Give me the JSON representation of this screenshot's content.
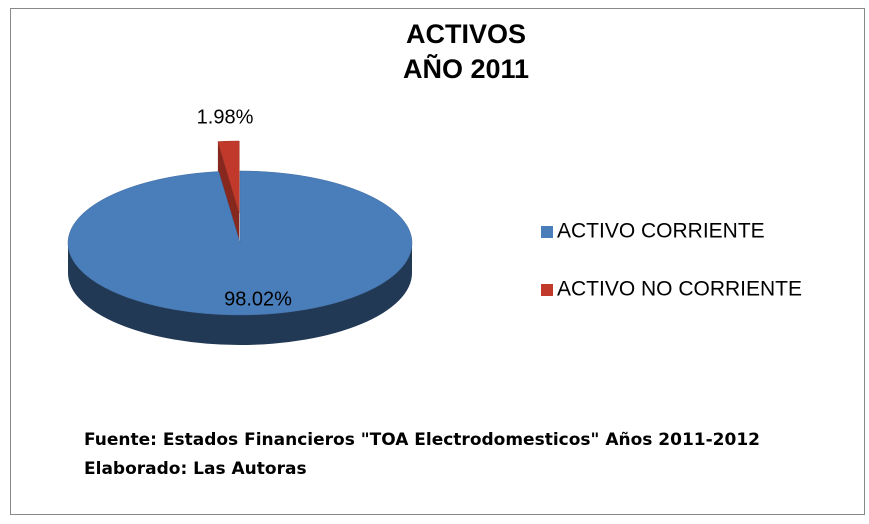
{
  "chart_data": {
    "type": "pie",
    "title": "ACTIVOS",
    "subtitle": "AÑO 2011",
    "categories": [
      "ACTIVO CORRIENTE",
      "ACTIVO NO CORRIENTE"
    ],
    "values": [
      98.02,
      1.98
    ],
    "value_labels": [
      "98.02%",
      "1.98%"
    ],
    "colors": [
      "#4a7ebb",
      "#c0392b"
    ],
    "notes": [
      "Fuente: Estados Financieros \"TOA Electrodomesticos\" Años 2011-2012",
      "Elaborado: Las Autoras"
    ]
  }
}
